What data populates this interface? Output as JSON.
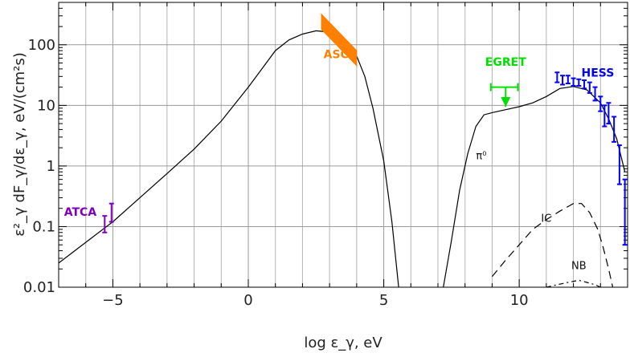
{
  "chart_data": {
    "type": "line",
    "xlabel": "log ε_γ, eV",
    "ylabel": "ε²_γ dF_γ/dε_γ,  eV/(cm²s)",
    "xlim": [
      -7,
      14
    ],
    "ylim": [
      0.01,
      500
    ],
    "y_scale": "log",
    "grid": true,
    "x_ticks": [
      {
        "value": -5,
        "label": "−5"
      },
      {
        "value": 0,
        "label": "0"
      },
      {
        "value": 5,
        "label": "5"
      },
      {
        "value": 10,
        "label": "10"
      }
    ],
    "y_ticks": [
      {
        "value": 0.01,
        "label": "0.01"
      },
      {
        "value": 0.1,
        "label": "0.1"
      },
      {
        "value": 1,
        "label": "1"
      },
      {
        "value": 10,
        "label": "10"
      },
      {
        "value": 100,
        "label": "100"
      }
    ],
    "series": [
      {
        "label": "",
        "style": "solid",
        "color": "#000000",
        "x": [
          -7,
          -6,
          -5,
          -4,
          -3,
          -2,
          -1,
          0,
          0.5,
          1,
          1.5,
          2,
          2.5,
          3,
          3.5,
          4,
          4.3,
          4.6,
          5,
          5.3,
          5.55
        ],
        "y": [
          0.025,
          0.055,
          0.12,
          0.3,
          0.75,
          1.9,
          5.5,
          20,
          40,
          80,
          120,
          150,
          170,
          162,
          120,
          65,
          30,
          9,
          1.2,
          0.12,
          0.01
        ]
      },
      {
        "label": "π⁰",
        "style": "solid",
        "color": "#000000",
        "x": [
          7.2,
          7.5,
          7.8,
          8.1,
          8.4,
          8.7,
          9,
          9.5,
          10,
          10.5,
          11,
          11.5,
          12,
          12.5,
          13,
          13.3,
          13.6,
          13.9
        ],
        "y": [
          0.01,
          0.06,
          0.4,
          1.6,
          4.5,
          7,
          7.6,
          8.5,
          9.5,
          11,
          14,
          19,
          20.5,
          18,
          11,
          6,
          2.8,
          0.8
        ]
      },
      {
        "label": "IC",
        "style": "dashed",
        "color": "#000000",
        "x": [
          9,
          9.5,
          10,
          10.5,
          11,
          11.5,
          12,
          12.3,
          12.6,
          12.9,
          13.1,
          13.3,
          13.45
        ],
        "y": [
          0.015,
          0.028,
          0.05,
          0.09,
          0.13,
          0.18,
          0.24,
          0.24,
          0.17,
          0.09,
          0.045,
          0.02,
          0.01
        ]
      },
      {
        "label": "NB",
        "style": "dashdot",
        "color": "#000000",
        "x": [
          11,
          11.4,
          11.8,
          12.2,
          12.5,
          12.8,
          13.0
        ],
        "y": [
          0.01,
          0.011,
          0.012,
          0.013,
          0.012,
          0.011,
          0.01
        ]
      }
    ],
    "datasets": [
      {
        "label": "ATCA",
        "color": "#8000c0",
        "points": [
          {
            "x": -5.3,
            "y": 0.11,
            "ylo": 0.08,
            "yhi": 0.15
          },
          {
            "x": -5.05,
            "y": 0.16,
            "ylo": 0.12,
            "yhi": 0.24
          }
        ]
      },
      {
        "label": "ASCA",
        "color": "#ff8000",
        "band": {
          "x": [
            2.7,
            4.0
          ],
          "y_upper": [
            320,
            80
          ],
          "y_lower": [
            180,
            45
          ]
        }
      },
      {
        "label": "EGRET",
        "color": "#00e000",
        "upper_limit": {
          "x": 9.5,
          "x_range": [
            8.95,
            9.95
          ],
          "y": 20,
          "y_arrow_tip": 9.5
        }
      },
      {
        "label": "HESS",
        "color": "#0000ff",
        "points": [
          {
            "x": 11.4,
            "y": 30,
            "ylo": 24,
            "yhi": 35
          },
          {
            "x": 11.6,
            "y": 26,
            "ylo": 22,
            "yhi": 31
          },
          {
            "x": 11.8,
            "y": 27,
            "ylo": 23,
            "yhi": 31
          },
          {
            "x": 12.0,
            "y": 24,
            "ylo": 21,
            "yhi": 28
          },
          {
            "x": 12.2,
            "y": 24,
            "ylo": 21,
            "yhi": 27
          },
          {
            "x": 12.4,
            "y": 22,
            "ylo": 19,
            "yhi": 26
          },
          {
            "x": 12.6,
            "y": 20,
            "ylo": 16,
            "yhi": 24
          },
          {
            "x": 12.8,
            "y": 16,
            "ylo": 12,
            "yhi": 20
          },
          {
            "x": 13.0,
            "y": 11,
            "ylo": 8,
            "yhi": 14
          },
          {
            "x": 13.15,
            "y": 7,
            "ylo": 4.5,
            "yhi": 10
          },
          {
            "x": 13.3,
            "y": 8,
            "ylo": 5,
            "yhi": 11
          },
          {
            "x": 13.5,
            "y": 4.5,
            "ylo": 2.5,
            "yhi": 6.5
          },
          {
            "x": 13.7,
            "y": 1.2,
            "ylo": 0.5,
            "yhi": 2.2
          },
          {
            "x": 13.9,
            "y": 0.3,
            "ylo": 0.05,
            "yhi": 0.6
          }
        ]
      }
    ]
  }
}
